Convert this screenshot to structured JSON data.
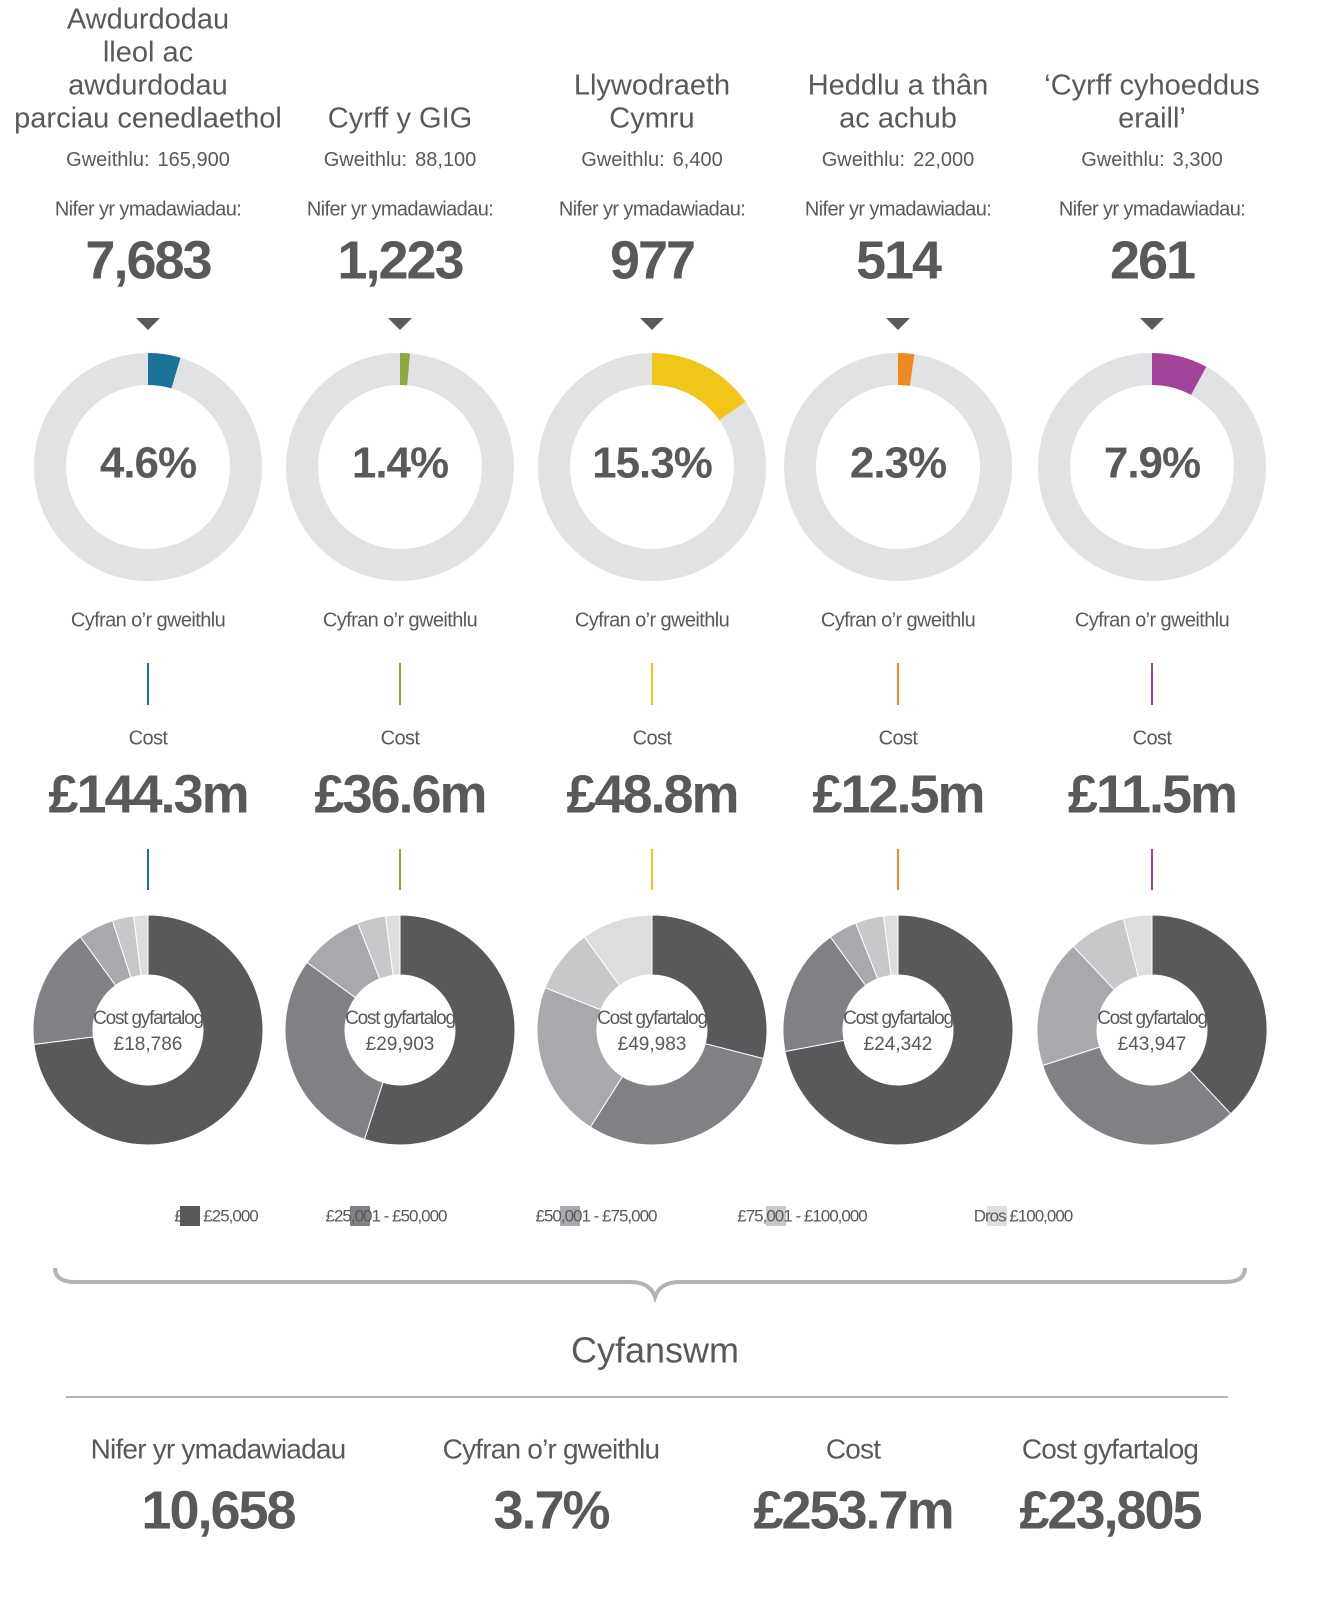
{
  "labels": {
    "workforce": "Gweithlu:",
    "exits": "Nifer yr ymadawiadau:",
    "share": "Cyfran o’r gweithlu",
    "cost": "Cost",
    "avg": "Cost gyfartalog"
  },
  "columns": [
    {
      "title": [
        "Awdurdodau",
        "lleol ac",
        "awdurdodau",
        "parciau cenedlaethol"
      ],
      "workforce": "165,900",
      "exits": "7,683",
      "share": 4.6,
      "share_label": "4.6%",
      "cost": "£144.3m",
      "avg": "£18,786",
      "color": "#1a7397",
      "bands": [
        73,
        17,
        5,
        3,
        2
      ]
    },
    {
      "title": [
        "Cyrff y GIG"
      ],
      "workforce": "88,100",
      "exits": "1,223",
      "share": 1.4,
      "share_label": "1.4%",
      "cost": "£36.6m",
      "avg": "£29,903",
      "color": "#8ea83a",
      "bands": [
        55,
        30,
        9,
        4,
        2
      ]
    },
    {
      "title": [
        "Llywodraeth",
        "Cymru"
      ],
      "workforce": "6,400",
      "exits": "977",
      "share": 15.3,
      "share_label": "15.3%",
      "cost": "£48.8m",
      "avg": "£49,983",
      "color": "#f2c618",
      "bands": [
        29,
        30,
        22,
        9,
        10
      ]
    },
    {
      "title": [
        "Heddlu a thân",
        "ac achub"
      ],
      "workforce": "22,000",
      "exits": "514",
      "share": 2.3,
      "share_label": "2.3%",
      "cost": "£12.5m",
      "avg": "£24,342",
      "color": "#ef8a22",
      "bands": [
        72,
        18,
        4,
        4,
        2
      ]
    },
    {
      "title": [
        "‘Cyrff cyhoeddus",
        "eraill’"
      ],
      "workforce": "3,300",
      "exits": "261",
      "share": 7.9,
      "share_label": "7.9%",
      "cost": "£11.5m",
      "avg": "£43,947",
      "color": "#a2459a",
      "bands": [
        38,
        32,
        18,
        8,
        4
      ]
    }
  ],
  "legend": {
    "names": [
      "£0 - £25,000",
      "£25,001 - £50,000",
      "£50,001 - £75,000",
      "£75,001 - £100,000",
      "Dros £100,000"
    ],
    "colors": [
      "#58595b",
      "#808184",
      "#a7a9ac",
      "#c7c8ca",
      "#dcdddf"
    ]
  },
  "total": {
    "title": "Cyfanswm",
    "color": "#c1272d",
    "items": [
      {
        "label": "Nifer yr ymadawiadau",
        "value": "10,658"
      },
      {
        "label": "Cyfran o’r gweithlu",
        "value": "3.7%"
      },
      {
        "label": "Cost",
        "value": "£253.7m"
      },
      {
        "label": "Cost gyfartalog",
        "value": "£23,805"
      }
    ]
  }
}
